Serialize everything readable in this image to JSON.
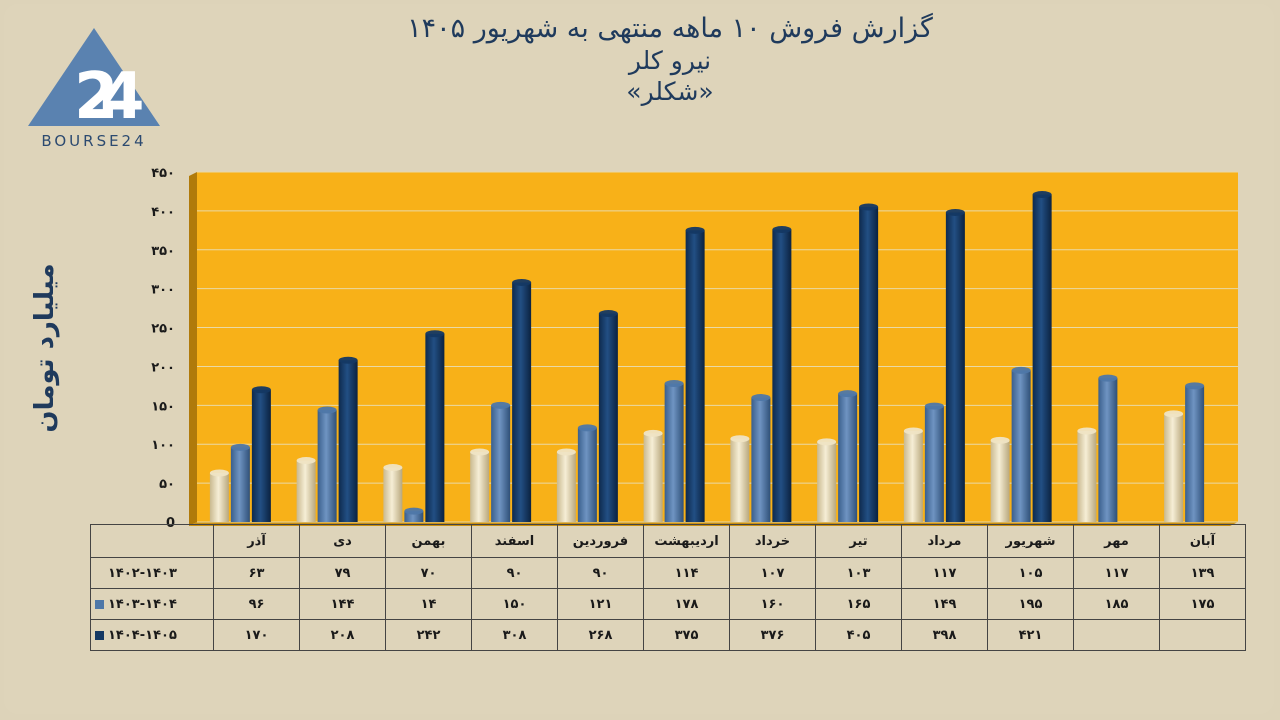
{
  "header": {
    "title": "گزارش  فروش ۱۰ ماهه منتهی به شهریور ۱۴۰۵",
    "subtitle": "نیرو کلر",
    "symbol": "«شکلر»",
    "logo_text": "BOURSE24"
  },
  "colors": {
    "background": "#ded4ba",
    "plot_area": "#f8b118",
    "series": [
      "#efe4c4",
      "#4e77a8",
      "#143863"
    ]
  },
  "chart_data": {
    "type": "bar",
    "ylabel": "میلیارد تومان",
    "ylim": [
      0,
      450
    ],
    "yticks": [
      0,
      50,
      100,
      150,
      200,
      250,
      300,
      350,
      400,
      450
    ],
    "ytick_labels": [
      "0",
      "۵۰",
      "۱۰۰",
      "۱۵۰",
      "۲۰۰",
      "۲۵۰",
      "۳۰۰",
      "۳۵۰",
      "۴۰۰",
      "۴۵۰"
    ],
    "grid": true,
    "categories": [
      "آذر",
      "دی",
      "بهمن",
      "اسفند",
      "فروردین",
      "اردیبهشت",
      "خرداد",
      "تیر",
      "مرداد",
      "شهریور",
      "مهر",
      "آبان"
    ],
    "series": [
      {
        "name": "۱۴۰۲-۱۴۰۳",
        "values": [
          63,
          79,
          70,
          90,
          90,
          114,
          107,
          103,
          117,
          105,
          117,
          139
        ],
        "labels": [
          "۶۳",
          "۷۹",
          "۷۰",
          "۹۰",
          "۹۰",
          "۱۱۴",
          "۱۰۷",
          "۱۰۳",
          "۱۱۷",
          "۱۰۵",
          "۱۱۷",
          "۱۳۹"
        ]
      },
      {
        "name": "۱۴۰۳-۱۴۰۴",
        "values": [
          96,
          144,
          14,
          150,
          121,
          178,
          160,
          165,
          149,
          195,
          185,
          175
        ],
        "labels": [
          "۹۶",
          "۱۴۴",
          "۱۴",
          "۱۵۰",
          "۱۲۱",
          "۱۷۸",
          "۱۶۰",
          "۱۶۵",
          "۱۴۹",
          "۱۹۵",
          "۱۸۵",
          "۱۷۵"
        ]
      },
      {
        "name": "۱۴۰۴-۱۴۰۵",
        "values": [
          170,
          208,
          242,
          308,
          268,
          375,
          376,
          405,
          398,
          421,
          null,
          null
        ],
        "labels": [
          "۱۷۰",
          "۲۰۸",
          "۲۴۲",
          "۳۰۸",
          "۲۶۸",
          "۳۷۵",
          "۳۷۶",
          "۴۰۵",
          "۳۹۸",
          "۴۲۱",
          "",
          ""
        ]
      }
    ]
  }
}
